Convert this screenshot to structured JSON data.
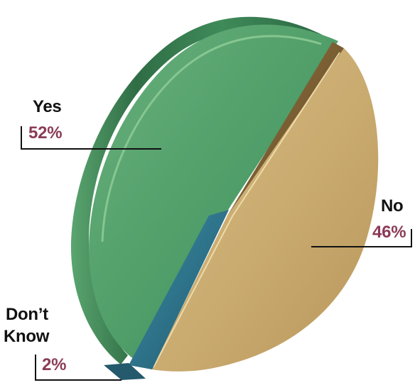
{
  "chart_data": {
    "type": "pie",
    "slices": [
      {
        "label": "Yes",
        "value_label": "52%",
        "value": 52,
        "color": "#4f9d68"
      },
      {
        "label": "No",
        "value_label": "46%",
        "value": 46,
        "color": "#c8a96b"
      },
      {
        "label_lines": [
          "Don’t",
          "Know"
        ],
        "value_label": "2%",
        "value": 2,
        "color": "#2f6f86"
      }
    ]
  }
}
